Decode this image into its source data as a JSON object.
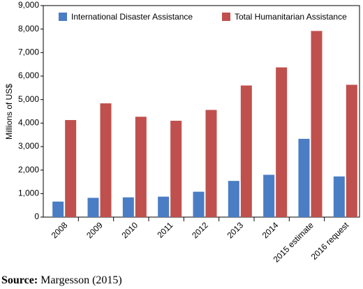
{
  "chart_data": {
    "type": "bar",
    "y_label": "Millions of US$",
    "categories": [
      "2008",
      "2009",
      "2010",
      "2011",
      "2012",
      "2013",
      "2014",
      "2015 estimate",
      "2016 request"
    ],
    "series": [
      {
        "name": "International Disaster Assistance",
        "color": "#4a7dc4",
        "values": [
          660,
          820,
          840,
          870,
          1080,
          1540,
          1800,
          3330,
          1730
        ]
      },
      {
        "name": "Total Humanitarian Assistance",
        "color": "#c0504d",
        "values": [
          4130,
          4840,
          4270,
          4100,
          4560,
          5600,
          6370,
          7920,
          5630
        ]
      }
    ],
    "ylim": [
      0,
      9000
    ],
    "yticks": [
      0,
      {
        "value": 1000,
        "label": "1,000"
      },
      {
        "value": 2000,
        "label": "2,000"
      },
      {
        "value": 3000,
        "label": "3,000"
      },
      {
        "value": 4000,
        "label": "4,000"
      },
      {
        "value": 5000,
        "label": "5,000"
      },
      {
        "value": 6000,
        "label": "6,000"
      },
      {
        "value": 7000,
        "label": "7,000"
      },
      {
        "value": 8000,
        "label": "8,000"
      },
      {
        "value": 9000,
        "label": "9,000"
      }
    ],
    "grid": false,
    "legend": "top",
    "source": {
      "label": "Source:",
      "text": "Margesson (2015)"
    }
  }
}
